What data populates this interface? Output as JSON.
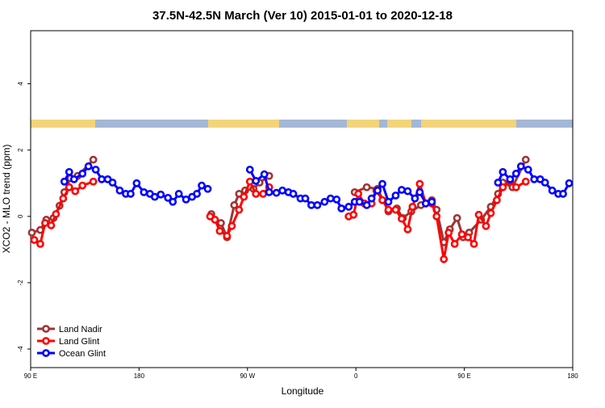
{
  "chart_data": {
    "type": "line",
    "title": "37.5N-42.5N March (Ver 10)   2015-01-01 to 2020-12-18",
    "x_label": "Longitude",
    "y_label": "XCO2 - MLO trend (ppm)",
    "xlim": [
      90,
      540
    ],
    "xticks": [
      {
        "value": 90,
        "label": "90 E"
      },
      {
        "value": 180,
        "label": "180"
      },
      {
        "value": 270,
        "label": "90 W"
      },
      {
        "value": 360,
        "label": "0"
      },
      {
        "value": 450,
        "label": "90 E"
      },
      {
        "value": 540,
        "label": "180"
      }
    ],
    "ylim": [
      -4.56,
      5.6
    ],
    "yticks": [
      -4,
      -2,
      0,
      2,
      4
    ],
    "legend": "bottom-left",
    "series": [
      {
        "name": "Land Nadir",
        "color": "#a03434",
        "x": [
          91,
          98,
          103,
          109,
          114,
          118,
          123,
          129,
          142,
          null,
          240,
          248,
          253,
          259,
          263,
          268,
          275,
          280,
          288,
          null,
          359,
          369,
          378,
          387,
          394,
          399,
          406,
          414,
          423,
          427,
          433,
          438,
          444,
          449,
          454,
          464,
          472,
          478,
          482,
          490,
          501
        ],
        "values": [
          -0.49,
          -0.41,
          -0.1,
          -0.05,
          0.32,
          0.73,
          1.15,
          1.22,
          1.71,
          null,
          0.07,
          -0.2,
          -0.63,
          0.34,
          0.68,
          0.78,
          0.83,
          1.02,
          1.22,
          null,
          0.73,
          0.88,
          0.83,
          0.15,
          0.24,
          -0.05,
          0.15,
          0.34,
          0.49,
          0.2,
          -0.78,
          -0.39,
          -0.05,
          -0.63,
          -0.49,
          -0.1,
          0.29,
          0.68,
          1.02,
          0.88,
          1.71
        ]
      },
      {
        "name": "Land Glint",
        "color": "#ff0000",
        "x": [
          93,
          98,
          102,
          107,
          111,
          117,
          122,
          127,
          133,
          142,
          null,
          239,
          243,
          247,
          253,
          257,
          263,
          267,
          272,
          277,
          283,
          288,
          null,
          354,
          358,
          362,
          367,
          373,
          377,
          382,
          387,
          393,
          398,
          403,
          407,
          413,
          418,
          423,
          427,
          433,
          437,
          442,
          448,
          453,
          458,
          462,
          468,
          472,
          477,
          482,
          488,
          493,
          501
        ],
        "values": [
          -0.71,
          -0.83,
          -0.2,
          -0.27,
          0.07,
          0.54,
          0.88,
          0.76,
          0.93,
          1.05,
          null,
          0,
          -0.1,
          -0.44,
          -0.59,
          -0.29,
          0.2,
          0.59,
          1.05,
          0.68,
          0.68,
          0.88,
          null,
          0,
          0.05,
          0.68,
          0.39,
          0.39,
          0.78,
          0.49,
          0.2,
          0.2,
          -0.07,
          -0.39,
          0.29,
          0.98,
          0.39,
          0.39,
          0,
          -1.29,
          -0.49,
          -0.83,
          -0.54,
          -0.63,
          -0.83,
          0.05,
          -0.29,
          0.1,
          0.49,
          0.88,
          1.07,
          0.88,
          1.05
        ]
      },
      {
        "name": "Ocean Glint",
        "color": "#0000ff",
        "x": [
          118,
          122,
          126,
          133,
          138,
          144,
          149,
          154,
          158,
          164,
          169,
          173,
          178,
          184,
          189,
          193,
          198,
          204,
          208,
          213,
          219,
          224,
          228,
          232,
          237,
          null,
          272,
          277,
          284,
          288,
          294,
          299,
          304,
          308,
          314,
          318,
          323,
          328,
          334,
          339,
          344,
          348,
          354,
          359,
          363,
          369,
          373,
          378,
          382,
          387,
          393,
          398,
          403,
          409,
          413,
          418,
          423,
          null,
          478,
          482,
          488,
          493,
          497,
          503,
          508,
          513,
          517,
          523,
          528,
          532,
          537
        ],
        "values": [
          1.05,
          1.34,
          1.12,
          1.29,
          1.51,
          1.41,
          1.12,
          1.12,
          1.02,
          0.78,
          0.68,
          0.68,
          1.0,
          0.73,
          0.68,
          0.59,
          0.66,
          0.56,
          0.44,
          0.68,
          0.51,
          0.59,
          0.68,
          0.93,
          0.83,
          null,
          1.41,
          1.07,
          1.27,
          0.73,
          0.71,
          0.78,
          0.73,
          0.68,
          0.54,
          0.54,
          0.34,
          0.34,
          0.44,
          0.54,
          0.51,
          0.24,
          0.29,
          0.44,
          0.44,
          0.34,
          0.54,
          0.78,
          0.98,
          0.44,
          0.63,
          0.8,
          0.76,
          0.54,
          0.73,
          0.39,
          0.44,
          null,
          1.02,
          1.34,
          1.12,
          1.29,
          1.51,
          1.41,
          1.12,
          1.12,
          1.02,
          0.78,
          0.68,
          0.68,
          1.0
        ]
      }
    ]
  }
}
